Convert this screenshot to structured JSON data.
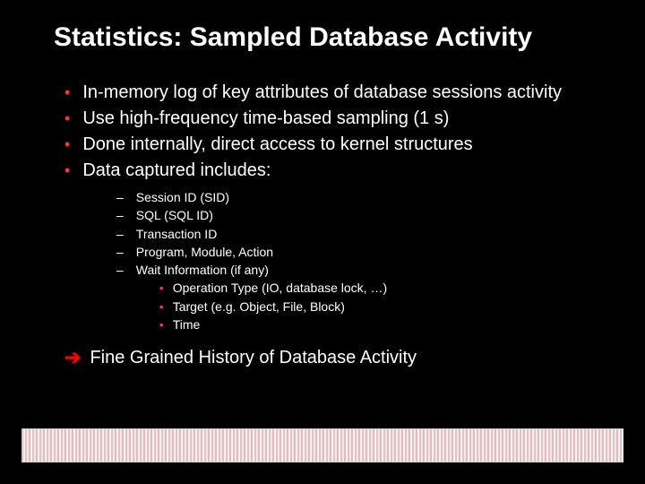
{
  "title": "Statistics: Sampled Database Activity",
  "bullets": [
    "In-memory log of key attributes of database sessions activity",
    "Use high-frequency time-based sampling (1 s)",
    "Done internally, direct access to kernel structures",
    "Data captured includes:"
  ],
  "sub_bullets": [
    "Session ID (SID)",
    "SQL (SQL ID)",
    "Transaction ID",
    "Program, Module, Action",
    "Wait Information (if any)"
  ],
  "sub_sub_bullets": [
    "Operation Type (IO, database lock, …)",
    "Target (e.g. Object, File, Block)",
    "Time"
  ],
  "conclusion": "Fine Grained History of Database Activity",
  "colors": {
    "background": "#000000",
    "text": "#ffffff",
    "accent": "#ff3333",
    "arrow": "#ff0000"
  },
  "typography": {
    "title_fontsize": 30,
    "body_fontsize": 20,
    "sub_fontsize": 14,
    "font_family": "Arial"
  }
}
